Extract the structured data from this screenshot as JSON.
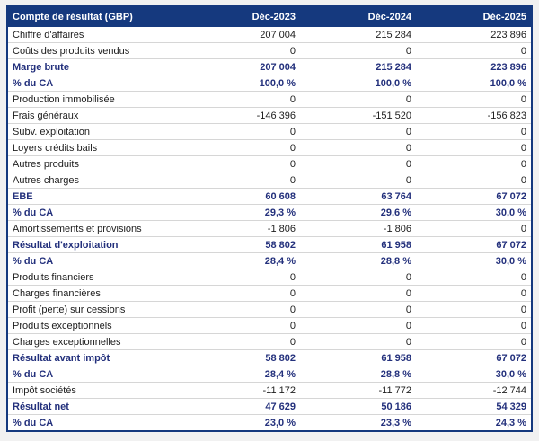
{
  "table": {
    "header": {
      "label": "Compte de résultat (GBP)",
      "columns": [
        "Déc-2023",
        "Déc-2024",
        "Déc-2025"
      ]
    },
    "rows": [
      {
        "label": "Chiffre d'affaires",
        "values": [
          "207 004",
          "215 284",
          "223 896"
        ],
        "bold": false
      },
      {
        "label": "Coûts des produits vendus",
        "values": [
          "0",
          "0",
          "0"
        ],
        "bold": false
      },
      {
        "label": "Marge brute",
        "values": [
          "207 004",
          "215 284",
          "223 896"
        ],
        "bold": true
      },
      {
        "label": "% du CA",
        "values": [
          "100,0 %",
          "100,0 %",
          "100,0 %"
        ],
        "bold": true
      },
      {
        "label": "Production immobilisée",
        "values": [
          "0",
          "0",
          "0"
        ],
        "bold": false
      },
      {
        "label": "Frais généraux",
        "values": [
          "-146 396",
          "-151 520",
          "-156 823"
        ],
        "bold": false
      },
      {
        "label": "Subv. exploitation",
        "values": [
          "0",
          "0",
          "0"
        ],
        "bold": false
      },
      {
        "label": "Loyers crédits bails",
        "values": [
          "0",
          "0",
          "0"
        ],
        "bold": false
      },
      {
        "label": "Autres produits",
        "values": [
          "0",
          "0",
          "0"
        ],
        "bold": false
      },
      {
        "label": "Autres charges",
        "values": [
          "0",
          "0",
          "0"
        ],
        "bold": false
      },
      {
        "label": "EBE",
        "values": [
          "60 608",
          "63 764",
          "67 072"
        ],
        "bold": true
      },
      {
        "label": "% du CA",
        "values": [
          "29,3 %",
          "29,6 %",
          "30,0 %"
        ],
        "bold": true
      },
      {
        "label": "Amortissements et provisions",
        "values": [
          "-1 806",
          "-1 806",
          "0"
        ],
        "bold": false
      },
      {
        "label": "Résultat d'exploitation",
        "values": [
          "58 802",
          "61 958",
          "67 072"
        ],
        "bold": true
      },
      {
        "label": "% du CA",
        "values": [
          "28,4 %",
          "28,8 %",
          "30,0 %"
        ],
        "bold": true
      },
      {
        "label": "Produits financiers",
        "values": [
          "0",
          "0",
          "0"
        ],
        "bold": false
      },
      {
        "label": "Charges financières",
        "values": [
          "0",
          "0",
          "0"
        ],
        "bold": false
      },
      {
        "label": "Profit (perte) sur cessions",
        "values": [
          "0",
          "0",
          "0"
        ],
        "bold": false
      },
      {
        "label": "Produits exceptionnels",
        "values": [
          "0",
          "0",
          "0"
        ],
        "bold": false
      },
      {
        "label": "Charges exceptionnelles",
        "values": [
          "0",
          "0",
          "0"
        ],
        "bold": false
      },
      {
        "label": "Résultat avant impôt",
        "values": [
          "58 802",
          "61 958",
          "67 072"
        ],
        "bold": true
      },
      {
        "label": "% du CA",
        "values": [
          "28,4 %",
          "28,8 %",
          "30,0 %"
        ],
        "bold": true
      },
      {
        "label": "Impôt sociétés",
        "values": [
          "-11 172",
          "-11 772",
          "-12 744"
        ],
        "bold": false
      },
      {
        "label": "Résultat net",
        "values": [
          "47 629",
          "50 186",
          "54 329"
        ],
        "bold": true
      },
      {
        "label": "% du CA",
        "values": [
          "23,0 %",
          "23,3 %",
          "24,3 %"
        ],
        "bold": true
      }
    ],
    "colors": {
      "header_bg": "#15397e",
      "header_text": "#ffffff",
      "border": "#15397e",
      "bold_text": "#23307c",
      "body_text": "#1d1d1d",
      "row_divider": "#d6d6d6",
      "page_bg": "#f1f1f1",
      "table_bg": "#ffffff"
    }
  }
}
